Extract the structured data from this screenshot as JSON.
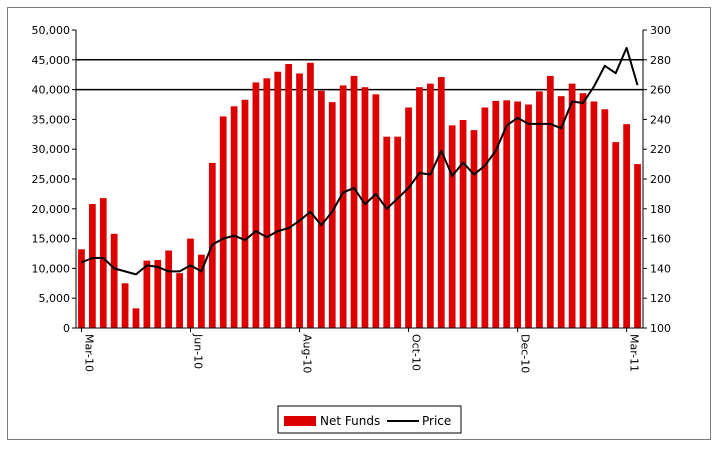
{
  "chart_data": {
    "type": "bar",
    "title": "",
    "xlabel": "",
    "ylabel": "",
    "ylim": [
      0,
      50000
    ],
    "y2lim": [
      100,
      300
    ],
    "y_ticks": [
      "0",
      "5,000",
      "10,000",
      "15,000",
      "20,000",
      "25,000",
      "30,000",
      "35,000",
      "40,000",
      "45,000",
      "50,000"
    ],
    "y2_ticks": [
      "100",
      "120",
      "140",
      "160",
      "180",
      "200",
      "220",
      "240",
      "260",
      "280",
      "300"
    ],
    "x_labels": [
      {
        "index": 0,
        "label": "Mar-10"
      },
      {
        "index": 10,
        "label": "Jun-10"
      },
      {
        "index": 20,
        "label": "Aug-10"
      },
      {
        "index": 30,
        "label": "Oct-10"
      },
      {
        "index": 40,
        "label": "Dec-10"
      },
      {
        "index": 50,
        "label": "Mar-11"
      }
    ],
    "grid_lines_y": [
      45000,
      40000
    ],
    "legend_position": "bottom",
    "series": [
      {
        "name": "Net Funds",
        "kind": "bar",
        "color": "#dd0000",
        "axis": "left",
        "values": [
          13200,
          20800,
          21800,
          15800,
          7500,
          3300,
          11300,
          11400,
          13000,
          9200,
          15000,
          12300,
          27700,
          35500,
          37200,
          38300,
          41200,
          41900,
          43000,
          44300,
          42700,
          44500,
          39800,
          37900,
          40700,
          42300,
          40400,
          39200,
          32100,
          32100,
          37000,
          40400,
          41000,
          42100,
          34000,
          34900,
          33200,
          37000,
          38100,
          38200,
          38000,
          37500,
          39700,
          42300,
          38900,
          41000,
          39400,
          38000,
          36700,
          31200,
          34200,
          27500
        ]
      },
      {
        "name": "Price",
        "kind": "line",
        "color": "#000000",
        "axis": "right",
        "values": [
          144,
          147,
          147,
          140,
          138,
          136,
          142,
          141,
          138,
          138,
          142,
          138,
          156,
          160,
          162,
          159,
          165,
          161,
          165,
          167,
          172,
          178,
          169,
          178,
          191,
          194,
          183,
          190,
          180,
          187,
          194,
          204,
          203,
          219,
          202,
          211,
          203,
          209,
          219,
          236,
          241,
          237,
          237,
          237,
          234,
          252,
          251,
          262,
          276,
          271,
          288,
          263
        ]
      }
    ]
  }
}
